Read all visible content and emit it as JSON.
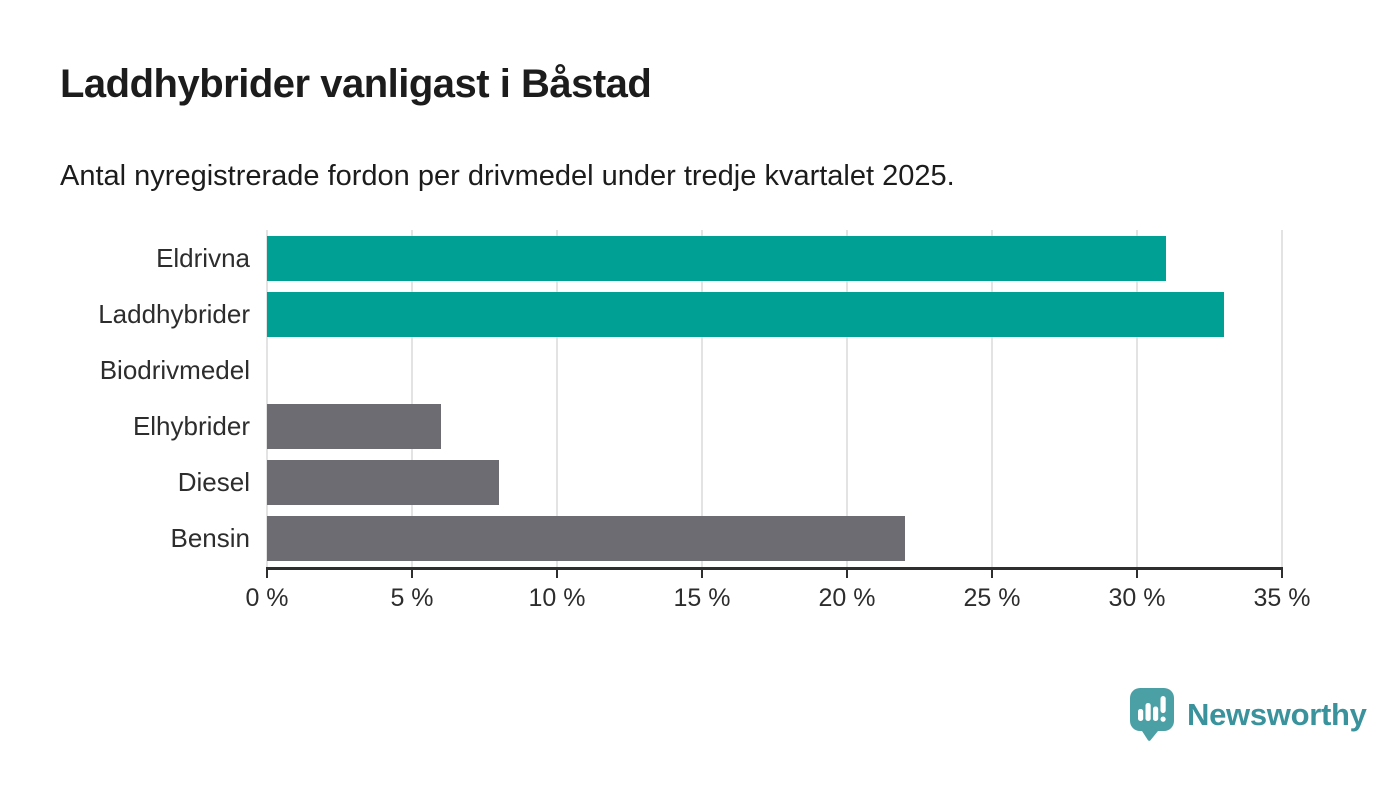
{
  "header": {
    "title": "Laddhybrider vanligast i Båstad",
    "subtitle": "Antal nyregistrerade fordon per drivmedel under tredje kvartalet 2025."
  },
  "chart_data": {
    "type": "bar",
    "orientation": "horizontal",
    "categories": [
      "Eldrivna",
      "Laddhybrider",
      "Biodrivmedel",
      "Elhybrider",
      "Diesel",
      "Bensin"
    ],
    "values": [
      31,
      33,
      0,
      6,
      8,
      22
    ],
    "unit": "%",
    "xlim": [
      0,
      35
    ],
    "xticks": [
      0,
      5,
      10,
      15,
      20,
      25,
      30,
      35
    ],
    "xtick_suffix": " %",
    "grid": true,
    "legend": "none",
    "title": "Laddhybrider vanligast i Båstad",
    "xlabel": "",
    "ylabel": "",
    "bar_colors": [
      "#00a094",
      "#00a094",
      "#6d6c72",
      "#6d6c72",
      "#6d6c72",
      "#6d6c72"
    ],
    "highlight_color": "#00a094",
    "default_color": "#6d6c72",
    "grid_color": "#e3e3e3",
    "axis_color": "#2e2e2e"
  },
  "footer": {
    "brand": "Newsworthy",
    "brand_color": "#3a939c",
    "logo_mark_color": "#4ba0a6",
    "logo_icon": "bar-chart-speech-bubble"
  }
}
